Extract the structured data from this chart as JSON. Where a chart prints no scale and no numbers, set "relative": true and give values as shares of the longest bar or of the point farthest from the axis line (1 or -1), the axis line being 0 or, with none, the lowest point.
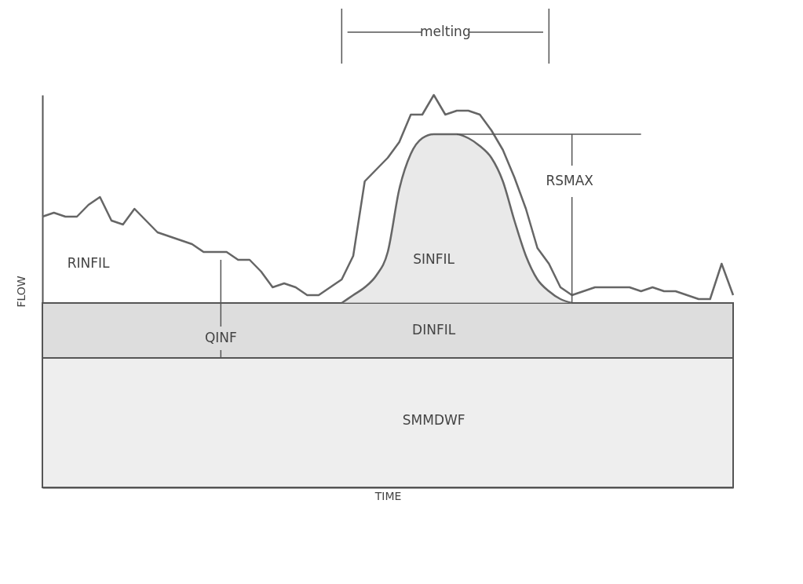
{
  "chart_data": {
    "type": "line",
    "relative": true,
    "xlabel": "TIME",
    "ylabel": "FLOW",
    "grid": false,
    "legend": false,
    "ref_lines": [
      {
        "axis": "y",
        "value": 0.9,
        "color": "#555555"
      }
    ],
    "categories": [
      null,
      null,
      null,
      null,
      null,
      null,
      null,
      null,
      null,
      null,
      null,
      null,
      null,
      null,
      null,
      null,
      null,
      null,
      null,
      null,
      null,
      null,
      null,
      null,
      null,
      null,
      null,
      null,
      null,
      null,
      null,
      null,
      null,
      null,
      null,
      null,
      null,
      null,
      null,
      null,
      null,
      null,
      null,
      null,
      null,
      null,
      null,
      null,
      null,
      null,
      null,
      null,
      null,
      null,
      null,
      null,
      null,
      null,
      null,
      null,
      null
    ],
    "series": [
      {
        "color": "#666666",
        "values": [
          0.69,
          0.7,
          0.69,
          0.69,
          0.72,
          0.74,
          0.68,
          0.67,
          0.71,
          0.68,
          0.65,
          0.64,
          0.63,
          0.62,
          0.6,
          0.6,
          0.6,
          0.58,
          0.58,
          0.55,
          0.51,
          0.52,
          0.51,
          0.49,
          0.49,
          0.51,
          0.53,
          0.59,
          0.78,
          0.81,
          0.84,
          0.88,
          0.95,
          0.95,
          1.0,
          0.95,
          0.96,
          0.96,
          0.95,
          0.91,
          0.86,
          0.79,
          0.71,
          0.61,
          0.57,
          0.51,
          0.49,
          0.5,
          0.51,
          0.51,
          0.51,
          0.51,
          0.5,
          0.51,
          0.5,
          0.5,
          0.49,
          0.48,
          0.48,
          0.57,
          0.49
        ]
      },
      {
        "name": "SINFIL",
        "type": "area",
        "color": "#666666",
        "values": [
          null,
          null,
          null,
          null,
          null,
          null,
          null,
          null,
          null,
          null,
          null,
          null,
          null,
          null,
          null,
          null,
          null,
          null,
          null,
          null,
          null,
          null,
          null,
          null,
          null,
          null,
          0.47,
          0.49,
          0.51,
          0.54,
          0.6,
          0.76,
          0.85,
          0.89,
          0.9,
          0.9,
          0.9,
          0.89,
          0.87,
          0.84,
          0.78,
          0.68,
          0.59,
          0.53,
          0.5,
          0.48,
          0.47,
          null,
          null,
          null,
          null,
          null,
          null,
          null,
          null,
          null,
          null,
          null,
          null,
          null,
          null
        ]
      }
    ],
    "bands": [
      {
        "axis": "y",
        "from": 0,
        "to": 0.33,
        "label": "SMMDWF",
        "color": "#eeeeee"
      },
      {
        "axis": "y",
        "from": 0.33,
        "to": 0.47,
        "label": "DINFIL",
        "color": "#dddddd"
      }
    ],
    "annotations": [
      "melting",
      "RSMAX",
      "QINF",
      "RINFIL"
    ]
  }
}
